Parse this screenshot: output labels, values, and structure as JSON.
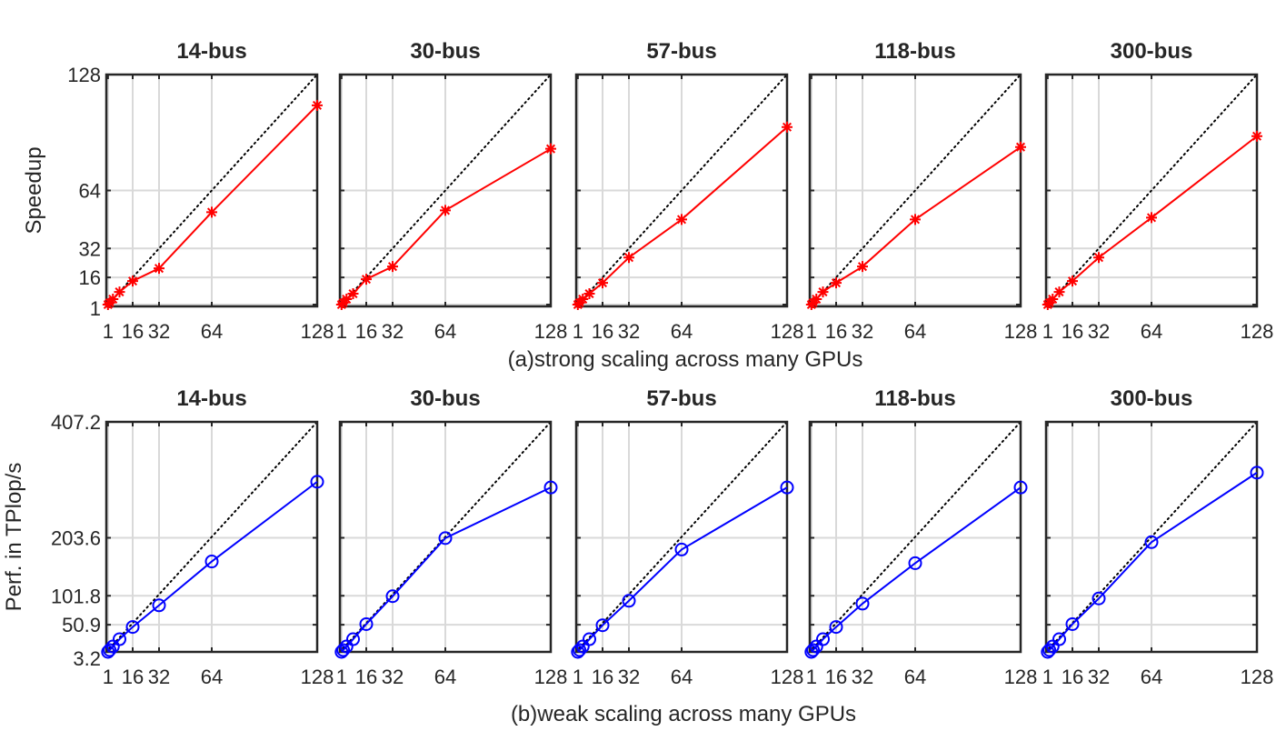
{
  "figure": {
    "row_a_caption": "(a)strong scaling across many GPUs",
    "row_b_caption": "(b)weak scaling across many GPUs"
  },
  "chart_data": [
    {
      "type": "line",
      "row": "a",
      "title": "14-bus",
      "ylabel": "Speedup",
      "x_ticks": [
        1,
        16,
        32,
        64,
        128
      ],
      "y_ticks": [
        1,
        16,
        32,
        64,
        128
      ],
      "xlim": [
        0,
        128
      ],
      "ylim": [
        0,
        128
      ],
      "grid": true,
      "reference_line": "ideal",
      "marker": "asterisk",
      "color": "#ff0000",
      "x": [
        1,
        2,
        4,
        8,
        16,
        32,
        64,
        128
      ],
      "values": [
        1,
        2,
        4,
        8,
        14,
        21,
        52,
        111
      ]
    },
    {
      "type": "line",
      "row": "a",
      "title": "30-bus",
      "ylabel": "",
      "x_ticks": [
        1,
        16,
        32,
        64,
        128
      ],
      "y_ticks": [
        1,
        16,
        32,
        64,
        128
      ],
      "xlim": [
        0,
        128
      ],
      "ylim": [
        0,
        128
      ],
      "grid": true,
      "reference_line": "ideal",
      "marker": "asterisk",
      "color": "#ff0000",
      "x": [
        1,
        2,
        4,
        8,
        16,
        32,
        64,
        128
      ],
      "values": [
        1,
        2,
        4,
        7,
        15,
        22,
        53,
        87
      ]
    },
    {
      "type": "line",
      "row": "a",
      "title": "57-bus",
      "ylabel": "",
      "x_ticks": [
        1,
        16,
        32,
        64,
        128
      ],
      "y_ticks": [
        1,
        16,
        32,
        64,
        128
      ],
      "xlim": [
        0,
        128
      ],
      "ylim": [
        0,
        128
      ],
      "grid": true,
      "reference_line": "ideal",
      "marker": "asterisk",
      "color": "#ff0000",
      "x": [
        1,
        2,
        4,
        8,
        16,
        32,
        64,
        128
      ],
      "values": [
        1,
        2,
        4,
        7,
        13,
        27,
        48,
        99
      ]
    },
    {
      "type": "line",
      "row": "a",
      "title": "118-bus",
      "ylabel": "",
      "x_ticks": [
        1,
        16,
        32,
        64,
        128
      ],
      "y_ticks": [
        1,
        16,
        32,
        64,
        128
      ],
      "xlim": [
        0,
        128
      ],
      "ylim": [
        0,
        128
      ],
      "grid": true,
      "reference_line": "ideal",
      "marker": "asterisk",
      "color": "#ff0000",
      "x": [
        1,
        2,
        4,
        8,
        16,
        32,
        64,
        128
      ],
      "values": [
        1,
        2,
        4,
        8,
        13,
        22,
        48,
        88
      ]
    },
    {
      "type": "line",
      "row": "a",
      "title": "300-bus",
      "ylabel": "",
      "x_ticks": [
        1,
        16,
        32,
        64,
        128
      ],
      "y_ticks": [
        1,
        16,
        32,
        64,
        128
      ],
      "xlim": [
        0,
        128
      ],
      "ylim": [
        0,
        128
      ],
      "grid": true,
      "reference_line": "ideal",
      "marker": "asterisk",
      "color": "#ff0000",
      "x": [
        1,
        2,
        4,
        8,
        16,
        32,
        64,
        128
      ],
      "values": [
        1,
        2,
        4,
        8,
        14,
        27,
        49,
        94
      ]
    },
    {
      "type": "line",
      "row": "b",
      "title": "14-bus",
      "ylabel": "Perf. in TPlop/s",
      "x_ticks": [
        1,
        16,
        32,
        64,
        128
      ],
      "y_ticks": [
        3.2,
        50.9,
        101.8,
        203.6,
        407.2
      ],
      "xlim": [
        0,
        128
      ],
      "ylim": [
        3.2,
        407.2
      ],
      "grid": true,
      "reference_line": "ideal",
      "marker": "circle",
      "color": "#0000ff",
      "x": [
        1,
        2,
        4,
        8,
        16,
        32,
        64,
        128
      ],
      "values": [
        3.2,
        6.4,
        12.7,
        25.5,
        47,
        85,
        162,
        302
      ]
    },
    {
      "type": "line",
      "row": "b",
      "title": "30-bus",
      "ylabel": "",
      "x_ticks": [
        1,
        16,
        32,
        64,
        128
      ],
      "y_ticks": [
        3.2,
        50.9,
        101.8,
        203.6,
        407.2
      ],
      "xlim": [
        0,
        128
      ],
      "ylim": [
        3.2,
        407.2
      ],
      "grid": true,
      "reference_line": "ideal",
      "marker": "circle",
      "color": "#0000ff",
      "x": [
        1,
        2,
        4,
        8,
        16,
        32,
        64,
        128
      ],
      "values": [
        3.2,
        6.4,
        12.7,
        25.5,
        52,
        101,
        203,
        292
      ]
    },
    {
      "type": "line",
      "row": "b",
      "title": "57-bus",
      "ylabel": "",
      "x_ticks": [
        1,
        16,
        32,
        64,
        128
      ],
      "y_ticks": [
        3.2,
        50.9,
        101.8,
        203.6,
        407.2
      ],
      "xlim": [
        0,
        128
      ],
      "ylim": [
        3.2,
        407.2
      ],
      "grid": true,
      "reference_line": "ideal",
      "marker": "circle",
      "color": "#0000ff",
      "x": [
        1,
        2,
        4,
        8,
        16,
        32,
        64,
        128
      ],
      "values": [
        3.2,
        6.4,
        12.7,
        25.5,
        50,
        93,
        183,
        292
      ]
    },
    {
      "type": "line",
      "row": "b",
      "title": "118-bus",
      "ylabel": "",
      "x_ticks": [
        1,
        16,
        32,
        64,
        128
      ],
      "y_ticks": [
        3.2,
        50.9,
        101.8,
        203.6,
        407.2
      ],
      "xlim": [
        0,
        128
      ],
      "ylim": [
        3.2,
        407.2
      ],
      "grid": true,
      "reference_line": "ideal",
      "marker": "circle",
      "color": "#0000ff",
      "x": [
        1,
        2,
        4,
        8,
        16,
        32,
        64,
        128
      ],
      "values": [
        3.2,
        6.4,
        12.7,
        25.5,
        47,
        88,
        159,
        292
      ]
    },
    {
      "type": "line",
      "row": "b",
      "title": "300-bus",
      "ylabel": "",
      "x_ticks": [
        1,
        16,
        32,
        64,
        128
      ],
      "y_ticks": [
        3.2,
        50.9,
        101.8,
        203.6,
        407.2
      ],
      "xlim": [
        0,
        128
      ],
      "ylim": [
        3.2,
        407.2
      ],
      "grid": true,
      "reference_line": "ideal",
      "marker": "circle",
      "color": "#0000ff",
      "x": [
        1,
        2,
        4,
        8,
        16,
        32,
        64,
        128
      ],
      "values": [
        3.2,
        6.4,
        12.7,
        25.5,
        52,
        97,
        196,
        318
      ]
    }
  ]
}
